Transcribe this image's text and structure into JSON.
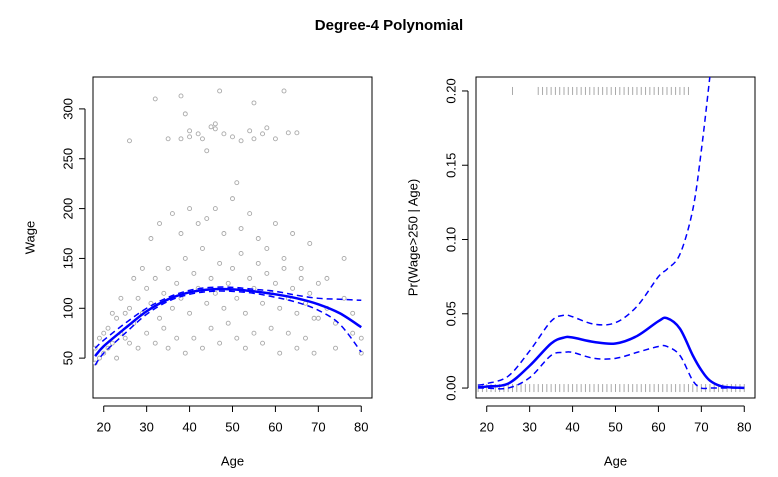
{
  "title": "Degree-4 Polynomial",
  "chart_data": [
    {
      "type": "scatter",
      "xlabel": "Age",
      "ylabel": "Wage",
      "xlim": [
        17.5,
        82.5
      ],
      "ylim": [
        10,
        332
      ],
      "xticks": [
        20,
        30,
        40,
        50,
        60,
        70,
        80
      ],
      "yticks": [
        50,
        100,
        150,
        200,
        250,
        300
      ],
      "series": [
        {
          "type": "scatter",
          "color": "#a9a9a9",
          "x": [
            18,
            19,
            20,
            21,
            22,
            23,
            24,
            25,
            26,
            27,
            28,
            29,
            30,
            31,
            32,
            33,
            34,
            35,
            36,
            37,
            38,
            39,
            40,
            41,
            42,
            43,
            44,
            45,
            46,
            47,
            48,
            49,
            50,
            51,
            52,
            53,
            54,
            55,
            56,
            57,
            58,
            59,
            60,
            61,
            62,
            63,
            64,
            65,
            66,
            67,
            68,
            69,
            70,
            72,
            74,
            76,
            78,
            80,
            18,
            19,
            20,
            21,
            22,
            23,
            24,
            25,
            26,
            27,
            28,
            29,
            30,
            31,
            32,
            33,
            34,
            35,
            36,
            37,
            38,
            39,
            40,
            41,
            42,
            43,
            44,
            45,
            46,
            47,
            48,
            49,
            50,
            51,
            52,
            53,
            54,
            55,
            56,
            57,
            58,
            59,
            60,
            61,
            62,
            63,
            64,
            65,
            66,
            67,
            68,
            69,
            70,
            72,
            74,
            76,
            78,
            80,
            26,
            32,
            35,
            38,
            39,
            40,
            42,
            43,
            44,
            45,
            46,
            47,
            48,
            50,
            52,
            54,
            55,
            57,
            58,
            60,
            62,
            63,
            65,
            40,
            46,
            55,
            51,
            38
          ],
          "values": [
            60,
            70,
            55,
            80,
            65,
            90,
            75,
            95,
            100,
            85,
            110,
            95,
            120,
            105,
            130,
            90,
            115,
            140,
            100,
            125,
            110,
            150,
            95,
            135,
            120,
            160,
            105,
            130,
            115,
            145,
            100,
            125,
            140,
            110,
            155,
            95,
            130,
            120,
            145,
            105,
            135,
            115,
            125,
            100,
            140,
            110,
            120,
            95,
            130,
            105,
            115,
            90,
            125,
            100,
            85,
            110,
            75,
            70,
            45,
            50,
            75,
            60,
            95,
            50,
            110,
            70,
            65,
            130,
            60,
            140,
            75,
            170,
            65,
            185,
            80,
            60,
            195,
            70,
            175,
            55,
            200,
            70,
            185,
            60,
            190,
            80,
            200,
            65,
            175,
            85,
            210,
            70,
            180,
            60,
            195,
            75,
            170,
            65,
            160,
            80,
            185,
            55,
            150,
            75,
            175,
            60,
            140,
            70,
            165,
            55,
            90,
            130,
            60,
            150,
            95,
            55,
            268,
            310,
            270,
            313,
            295,
            278,
            275,
            270,
            258,
            282,
            280,
            318,
            275,
            272,
            268,
            278,
            270,
            275,
            281,
            270,
            318,
            276,
            276,
            272,
            285,
            306,
            226,
            270
          ]
        },
        {
          "type": "line",
          "linestyle": "solid",
          "color": "#0000ff",
          "x": [
            18,
            20,
            25,
            30,
            35,
            40,
            45,
            50,
            55,
            60,
            65,
            70,
            75,
            80
          ],
          "values": [
            52,
            62,
            80,
            97,
            109,
            116,
            119,
            119,
            117,
            114,
            110,
            104,
            95,
            81
          ]
        },
        {
          "type": "line",
          "linestyle": "dashed",
          "color": "#0000ff",
          "x": [
            18,
            20,
            25,
            30,
            35,
            40,
            45,
            50,
            55,
            60,
            65,
            70,
            75,
            80
          ],
          "values": [
            60,
            68,
            85,
            100,
            111,
            118,
            121,
            121,
            119,
            117,
            113,
            110,
            109,
            108
          ]
        },
        {
          "type": "line",
          "linestyle": "dashed",
          "color": "#0000ff",
          "x": [
            18,
            20,
            25,
            30,
            35,
            40,
            45,
            50,
            55,
            60,
            65,
            70,
            75,
            80
          ],
          "values": [
            43,
            55,
            75,
            94,
            107,
            114,
            117,
            117,
            115,
            111,
            106,
            98,
            84,
            56
          ]
        }
      ]
    },
    {
      "type": "line",
      "xlabel": "Age",
      "ylabel": "Pr(Wage>250 | Age)",
      "xlim": [
        17.5,
        82.5
      ],
      "ylim": [
        -0.0067,
        0.2094
      ],
      "xticks": [
        20,
        30,
        40,
        50,
        60,
        70,
        80
      ],
      "yticks": [
        {
          "value": 0,
          "label": "0.00"
        },
        0.05,
        {
          "value": 0.1,
          "label": "0.10"
        },
        0.15,
        {
          "value": 0.2,
          "label": "0.20"
        }
      ],
      "series": [
        {
          "type": "line",
          "linestyle": "solid",
          "color": "#0000ff",
          "x": [
            18,
            20,
            25,
            30,
            35,
            38,
            40,
            45,
            50,
            55,
            60,
            62,
            65,
            68,
            70,
            72,
            75,
            80
          ],
          "values": [
            0.0005,
            0.001,
            0.003,
            0.015,
            0.03,
            0.034,
            0.034,
            0.031,
            0.03,
            0.035,
            0.045,
            0.047,
            0.04,
            0.022,
            0.012,
            0.005,
            0.001,
            0.0001
          ]
        },
        {
          "type": "line",
          "linestyle": "dashed",
          "color": "#0000ff",
          "x": [
            18,
            20,
            25,
            30,
            35,
            38,
            40,
            45,
            50,
            55,
            60,
            62,
            65,
            68,
            70,
            72,
            75,
            80
          ],
          "values": [
            0.002,
            0.003,
            0.008,
            0.025,
            0.045,
            0.049,
            0.048,
            0.043,
            0.044,
            0.055,
            0.075,
            0.08,
            0.09,
            0.12,
            0.16,
            0.21,
            null,
            null
          ]
        },
        {
          "type": "line",
          "linestyle": "dashed",
          "color": "#0000ff",
          "x": [
            18,
            20,
            25,
            30,
            35,
            38,
            40,
            45,
            50,
            55,
            60,
            62,
            65,
            68,
            70,
            72,
            75,
            80
          ],
          "values": [
            0,
            0,
            0,
            0.007,
            0.022,
            0.024,
            0.024,
            0.02,
            0.02,
            0.024,
            0.028,
            0.028,
            0.022,
            0.005,
            0,
            0,
            0,
            0
          ]
        }
      ],
      "rugs": [
        {
          "value": 0.2,
          "color": "#a9a9a9",
          "x": [
            26,
            32,
            33,
            34,
            35,
            36,
            37,
            38,
            39,
            40,
            41,
            42,
            43,
            44,
            45,
            46,
            47,
            48,
            49,
            50,
            51,
            52,
            53,
            54,
            55,
            56,
            57,
            58,
            59,
            60,
            61,
            62,
            63,
            64,
            65,
            66,
            67
          ]
        },
        {
          "value": 0,
          "color": "#a9a9a9",
          "x": [
            18,
            19,
            20,
            21,
            22,
            23,
            24,
            25,
            26,
            27,
            28,
            29,
            30,
            31,
            32,
            33,
            34,
            35,
            36,
            37,
            38,
            39,
            40,
            41,
            42,
            43,
            44,
            45,
            46,
            47,
            48,
            49,
            50,
            51,
            52,
            53,
            54,
            55,
            56,
            57,
            58,
            59,
            60,
            61,
            62,
            63,
            64,
            65,
            66,
            67,
            68,
            69,
            70,
            71,
            72,
            73,
            74,
            75,
            76,
            77,
            78,
            79,
            80
          ]
        }
      ]
    }
  ]
}
